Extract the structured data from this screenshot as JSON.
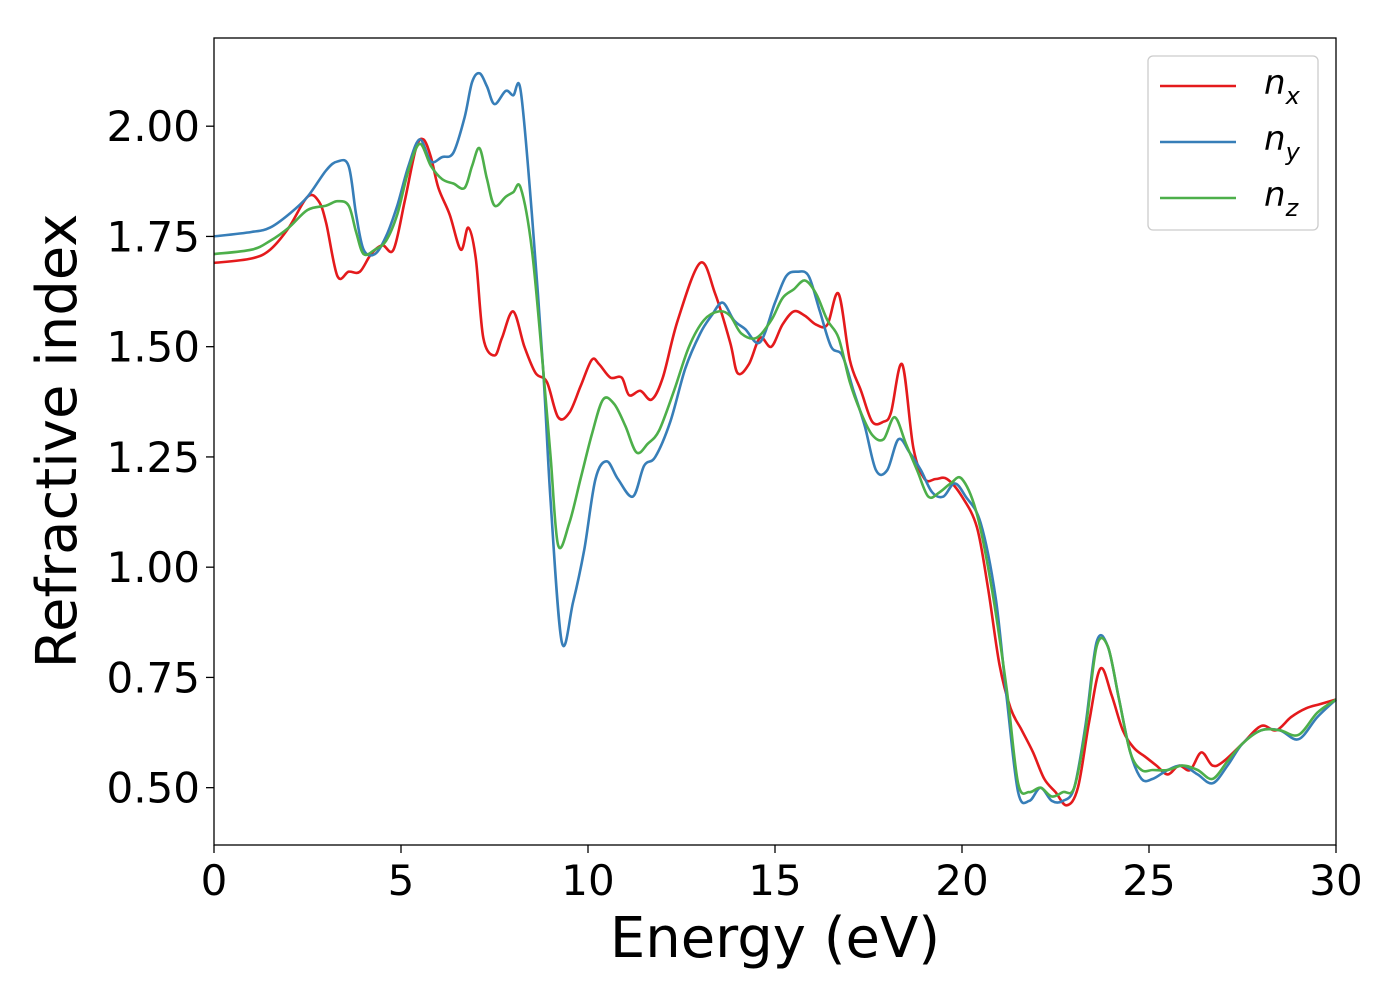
{
  "chart_data": {
    "type": "line",
    "title": "",
    "xlabel": "Energy (eV)",
    "ylabel": "Refractive index",
    "xlim": [
      0,
      30
    ],
    "ylim": [
      0.37,
      2.2
    ],
    "xticks": [
      0,
      5,
      10,
      15,
      20,
      25,
      30
    ],
    "xtick_labels": [
      "0",
      "5",
      "10",
      "15",
      "20",
      "25",
      "30"
    ],
    "yticks": [
      0.5,
      0.75,
      1.0,
      1.25,
      1.5,
      1.75,
      2.0
    ],
    "ytick_labels": [
      "0.50",
      "0.75",
      "1.00",
      "1.25",
      "1.50",
      "1.75",
      "2.00"
    ],
    "grid": false,
    "legend_position": "top-right",
    "series": [
      {
        "name": "n_x",
        "label_main": "n",
        "label_sub": "x",
        "color": "#e41a1c",
        "x": [
          0,
          1,
          1.5,
          2,
          2.5,
          2.8,
          3.0,
          3.3,
          3.6,
          3.9,
          4.2,
          4.5,
          4.8,
          5.1,
          5.4,
          5.6,
          5.8,
          6.0,
          6.3,
          6.6,
          6.8,
          7.0,
          7.2,
          7.5,
          7.7,
          8.0,
          8.3,
          8.6,
          8.9,
          9.2,
          9.5,
          9.8,
          10.1,
          10.3,
          10.6,
          10.9,
          11.1,
          11.4,
          11.7,
          12.0,
          12.4,
          13.0,
          13.4,
          13.8,
          14.0,
          14.3,
          14.6,
          14.9,
          15.2,
          15.5,
          15.8,
          16.1,
          16.4,
          16.7,
          17.0,
          17.3,
          17.6,
          17.9,
          18.1,
          18.4,
          18.7,
          19.0,
          19.3,
          19.6,
          20.0,
          20.4,
          20.7,
          21.0,
          21.3,
          21.6,
          21.9,
          22.2,
          22.5,
          22.8,
          23.1,
          23.4,
          23.7,
          24.0,
          24.3,
          24.6,
          24.9,
          25.2,
          25.5,
          25.8,
          26.1,
          26.4,
          26.7,
          27.0,
          27.5,
          28.0,
          28.4,
          28.8,
          29.2,
          29.6,
          30.0
        ],
        "y": [
          1.69,
          1.7,
          1.72,
          1.77,
          1.84,
          1.83,
          1.78,
          1.66,
          1.67,
          1.67,
          1.71,
          1.73,
          1.72,
          1.83,
          1.95,
          1.97,
          1.93,
          1.86,
          1.8,
          1.72,
          1.77,
          1.7,
          1.52,
          1.48,
          1.52,
          1.58,
          1.5,
          1.44,
          1.42,
          1.34,
          1.35,
          1.41,
          1.47,
          1.46,
          1.43,
          1.43,
          1.39,
          1.4,
          1.38,
          1.43,
          1.56,
          1.69,
          1.62,
          1.51,
          1.44,
          1.46,
          1.52,
          1.5,
          1.55,
          1.58,
          1.57,
          1.55,
          1.55,
          1.62,
          1.47,
          1.4,
          1.33,
          1.33,
          1.35,
          1.46,
          1.27,
          1.2,
          1.2,
          1.2,
          1.16,
          1.09,
          0.95,
          0.78,
          0.68,
          0.63,
          0.58,
          0.52,
          0.49,
          0.46,
          0.5,
          0.65,
          0.77,
          0.71,
          0.63,
          0.59,
          0.57,
          0.55,
          0.53,
          0.55,
          0.54,
          0.58,
          0.55,
          0.56,
          0.6,
          0.64,
          0.63,
          0.66,
          0.68,
          0.69,
          0.7
        ]
      },
      {
        "name": "n_y",
        "label_main": "n",
        "label_sub": "y",
        "color": "#377eb8",
        "x": [
          0,
          1,
          1.5,
          2,
          2.5,
          3.0,
          3.3,
          3.6,
          3.8,
          4.0,
          4.3,
          4.6,
          4.9,
          5.2,
          5.5,
          5.8,
          6.1,
          6.4,
          6.7,
          6.9,
          7.1,
          7.3,
          7.5,
          7.8,
          8.0,
          8.2,
          8.5,
          8.8,
          9.0,
          9.3,
          9.6,
          9.9,
          10.2,
          10.5,
          10.8,
          11.2,
          11.5,
          11.8,
          12.2,
          12.6,
          13.0,
          13.3,
          13.6,
          13.9,
          14.2,
          14.6,
          15.0,
          15.3,
          15.6,
          15.9,
          16.2,
          16.5,
          16.8,
          17.1,
          17.4,
          17.7,
          18.0,
          18.3,
          18.6,
          18.9,
          19.2,
          19.5,
          19.8,
          20.1,
          20.5,
          20.9,
          21.2,
          21.5,
          21.8,
          22.1,
          22.4,
          22.7,
          23.0,
          23.3,
          23.6,
          23.9,
          24.2,
          24.5,
          24.8,
          25.1,
          25.5,
          25.9,
          26.3,
          26.7,
          27.1,
          27.5,
          28.0,
          28.5,
          29.0,
          29.5,
          30.0
        ],
        "y": [
          1.75,
          1.76,
          1.77,
          1.8,
          1.84,
          1.9,
          1.92,
          1.91,
          1.8,
          1.72,
          1.71,
          1.75,
          1.82,
          1.91,
          1.97,
          1.92,
          1.93,
          1.94,
          2.02,
          2.1,
          2.12,
          2.09,
          2.05,
          2.08,
          2.07,
          2.08,
          1.8,
          1.45,
          1.15,
          0.83,
          0.92,
          1.04,
          1.2,
          1.24,
          1.2,
          1.16,
          1.23,
          1.25,
          1.33,
          1.45,
          1.53,
          1.57,
          1.6,
          1.56,
          1.54,
          1.51,
          1.6,
          1.66,
          1.67,
          1.66,
          1.58,
          1.5,
          1.48,
          1.4,
          1.32,
          1.22,
          1.22,
          1.29,
          1.26,
          1.22,
          1.17,
          1.16,
          1.19,
          1.16,
          1.1,
          0.93,
          0.7,
          0.49,
          0.47,
          0.5,
          0.47,
          0.47,
          0.5,
          0.64,
          0.83,
          0.82,
          0.7,
          0.58,
          0.52,
          0.52,
          0.54,
          0.55,
          0.53,
          0.51,
          0.55,
          0.6,
          0.63,
          0.63,
          0.61,
          0.66,
          0.7
        ]
      },
      {
        "name": "n_z",
        "label_main": "n",
        "label_sub": "z",
        "color": "#4daf4a",
        "x": [
          0,
          1,
          1.5,
          2,
          2.5,
          3.0,
          3.3,
          3.6,
          3.8,
          4.0,
          4.3,
          4.6,
          4.9,
          5.2,
          5.5,
          5.8,
          6.1,
          6.4,
          6.7,
          6.9,
          7.1,
          7.3,
          7.5,
          7.8,
          8.0,
          8.2,
          8.5,
          8.8,
          9.0,
          9.2,
          9.5,
          9.8,
          10.1,
          10.4,
          10.7,
          11.0,
          11.3,
          11.6,
          11.9,
          12.3,
          12.7,
          13.1,
          13.5,
          13.8,
          14.1,
          14.5,
          14.9,
          15.2,
          15.5,
          15.8,
          16.1,
          16.4,
          16.7,
          17.0,
          17.3,
          17.6,
          17.9,
          18.2,
          18.5,
          18.8,
          19.1,
          19.4,
          19.7,
          20.0,
          20.4,
          20.8,
          21.2,
          21.5,
          21.8,
          22.1,
          22.4,
          22.7,
          23.0,
          23.3,
          23.6,
          23.9,
          24.2,
          24.5,
          24.8,
          25.1,
          25.5,
          25.9,
          26.3,
          26.7,
          27.1,
          27.5,
          28.0,
          28.5,
          29.0,
          29.5,
          30.0
        ],
        "y": [
          1.71,
          1.72,
          1.74,
          1.77,
          1.81,
          1.82,
          1.83,
          1.82,
          1.76,
          1.71,
          1.72,
          1.74,
          1.8,
          1.9,
          1.96,
          1.91,
          1.88,
          1.87,
          1.86,
          1.91,
          1.95,
          1.88,
          1.82,
          1.84,
          1.85,
          1.86,
          1.72,
          1.45,
          1.25,
          1.05,
          1.1,
          1.2,
          1.3,
          1.38,
          1.37,
          1.32,
          1.26,
          1.28,
          1.31,
          1.4,
          1.5,
          1.56,
          1.58,
          1.57,
          1.53,
          1.52,
          1.56,
          1.61,
          1.63,
          1.65,
          1.62,
          1.56,
          1.52,
          1.42,
          1.35,
          1.3,
          1.29,
          1.34,
          1.28,
          1.22,
          1.16,
          1.17,
          1.19,
          1.2,
          1.12,
          0.95,
          0.72,
          0.51,
          0.49,
          0.5,
          0.48,
          0.49,
          0.5,
          0.63,
          0.82,
          0.82,
          0.7,
          0.58,
          0.54,
          0.54,
          0.54,
          0.55,
          0.54,
          0.52,
          0.56,
          0.6,
          0.63,
          0.63,
          0.62,
          0.67,
          0.7
        ]
      }
    ]
  }
}
